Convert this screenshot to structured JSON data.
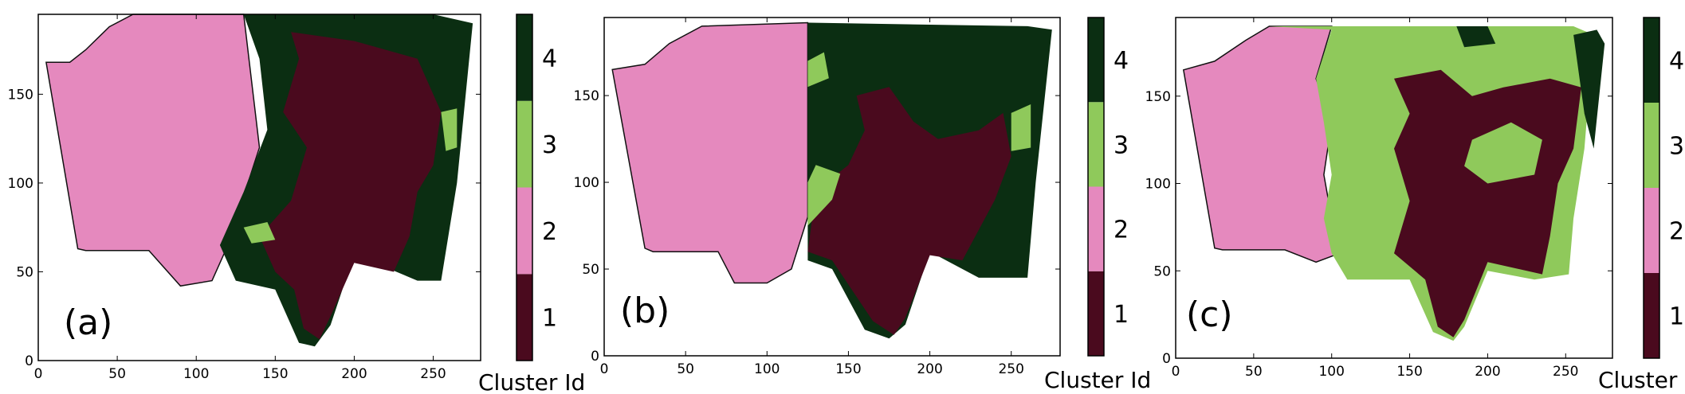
{
  "colors": {
    "cluster_1": "#4a0a1e",
    "cluster_2": "#e589be",
    "cluster_3": "#8fc95b",
    "cluster_4": "#0b2e12"
  },
  "chart_data": [
    {
      "type": "heatmap",
      "panel_label": "(a)",
      "x_ticks": [
        "0",
        "50",
        "100",
        "150",
        "200",
        "250"
      ],
      "y_ticks": [
        "0",
        "50",
        "100",
        "150"
      ],
      "xlim": [
        0,
        280
      ],
      "ylim": [
        0,
        195
      ],
      "colorbar": {
        "ticks": [
          "1",
          "2",
          "3",
          "4"
        ],
        "label": "Cluster Id"
      },
      "regions": [
        {
          "cluster": 2,
          "polygon": [
            [
              5,
              168
            ],
            [
              20,
              168
            ],
            [
              30,
              175
            ],
            [
              45,
              188
            ],
            [
              60,
              195
            ],
            [
              130,
              195
            ],
            [
              140,
              120
            ],
            [
              120,
              65
            ],
            [
              110,
              45
            ],
            [
              90,
              42
            ],
            [
              70,
              62
            ],
            [
              30,
              62
            ],
            [
              25,
              63
            ]
          ]
        },
        {
          "cluster": 4,
          "polygon": [
            [
              130,
              195
            ],
            [
              250,
              195
            ],
            [
              275,
              190
            ],
            [
              265,
              100
            ],
            [
              255,
              45
            ],
            [
              240,
              45
            ],
            [
              200,
              60
            ],
            [
              185,
              20
            ],
            [
              175,
              8
            ],
            [
              165,
              10
            ],
            [
              150,
              40
            ],
            [
              125,
              45
            ],
            [
              115,
              65
            ],
            [
              130,
              95
            ],
            [
              145,
              130
            ],
            [
              140,
              170
            ]
          ]
        },
        {
          "cluster": 1,
          "polygon": [
            [
              160,
              185
            ],
            [
              200,
              180
            ],
            [
              240,
              170
            ],
            [
              255,
              140
            ],
            [
              250,
              110
            ],
            [
              240,
              95
            ],
            [
              235,
              70
            ],
            [
              225,
              50
            ],
            [
              200,
              55
            ],
            [
              185,
              25
            ],
            [
              178,
              12
            ],
            [
              168,
              18
            ],
            [
              162,
              40
            ],
            [
              150,
              50
            ],
            [
              140,
              70
            ],
            [
              160,
              90
            ],
            [
              170,
              120
            ],
            [
              155,
              140
            ],
            [
              165,
              170
            ]
          ]
        },
        {
          "cluster": 3,
          "polygon": [
            [
              255,
              140
            ],
            [
              265,
              142
            ],
            [
              265,
              120
            ],
            [
              258,
              118
            ]
          ]
        },
        {
          "cluster": 3,
          "polygon": [
            [
              130,
              75
            ],
            [
              145,
              78
            ],
            [
              150,
              68
            ],
            [
              135,
              66
            ]
          ]
        }
      ]
    },
    {
      "type": "heatmap",
      "panel_label": "(b)",
      "x_ticks": [
        "0",
        "50",
        "100",
        "150",
        "200",
        "250"
      ],
      "y_ticks": [
        "0",
        "50",
        "100",
        "150"
      ],
      "xlim": [
        0,
        280
      ],
      "ylim": [
        0,
        195
      ],
      "colorbar": {
        "ticks": [
          "1",
          "2",
          "3",
          "4"
        ],
        "label": "Cluster Id"
      },
      "regions": [
        {
          "cluster": 2,
          "polygon": [
            [
              5,
              165
            ],
            [
              25,
              168
            ],
            [
              40,
              180
            ],
            [
              60,
              190
            ],
            [
              125,
              192
            ],
            [
              125,
              130
            ],
            [
              125,
              80
            ],
            [
              115,
              50
            ],
            [
              100,
              42
            ],
            [
              80,
              42
            ],
            [
              70,
              60
            ],
            [
              30,
              60
            ],
            [
              25,
              62
            ]
          ]
        },
        {
          "cluster": 4,
          "polygon": [
            [
              125,
              192
            ],
            [
              260,
              190
            ],
            [
              275,
              188
            ],
            [
              265,
              100
            ],
            [
              260,
              45
            ],
            [
              230,
              45
            ],
            [
              200,
              60
            ],
            [
              185,
              18
            ],
            [
              175,
              10
            ],
            [
              160,
              15
            ],
            [
              140,
              50
            ],
            [
              125,
              55
            ],
            [
              125,
              130
            ]
          ]
        },
        {
          "cluster": 1,
          "polygon": [
            [
              155,
              150
            ],
            [
              175,
              155
            ],
            [
              190,
              135
            ],
            [
              205,
              125
            ],
            [
              230,
              130
            ],
            [
              245,
              140
            ],
            [
              250,
              115
            ],
            [
              240,
              90
            ],
            [
              220,
              55
            ],
            [
              200,
              58
            ],
            [
              185,
              22
            ],
            [
              178,
              12
            ],
            [
              165,
              20
            ],
            [
              140,
              55
            ],
            [
              125,
              60
            ],
            [
              130,
              95
            ],
            [
              150,
              110
            ],
            [
              160,
              130
            ]
          ]
        },
        {
          "cluster": 3,
          "polygon": [
            [
              125,
              75
            ],
            [
              140,
              90
            ],
            [
              145,
              105
            ],
            [
              130,
              110
            ],
            [
              125,
              100
            ]
          ]
        },
        {
          "cluster": 3,
          "polygon": [
            [
              125,
              170
            ],
            [
              135,
              175
            ],
            [
              138,
              160
            ],
            [
              125,
              155
            ]
          ]
        },
        {
          "cluster": 3,
          "polygon": [
            [
              250,
              140
            ],
            [
              262,
              145
            ],
            [
              262,
              120
            ],
            [
              250,
              118
            ]
          ]
        }
      ]
    },
    {
      "type": "heatmap",
      "panel_label": "(c)",
      "x_ticks": [
        "0",
        "50",
        "100",
        "150",
        "200",
        "250"
      ],
      "y_ticks": [
        "0",
        "50",
        "100",
        "150"
      ],
      "xlim": [
        0,
        280
      ],
      "ylim": [
        0,
        195
      ],
      "colorbar": {
        "ticks": [
          "1",
          "2",
          "3",
          "4"
        ],
        "label": "Cluster"
      },
      "regions": [
        {
          "cluster": 2,
          "polygon": [
            [
              5,
              165
            ],
            [
              25,
              170
            ],
            [
              45,
              182
            ],
            [
              60,
              190
            ],
            [
              100,
              190
            ],
            [
              90,
              160
            ],
            [
              100,
              135
            ],
            [
              95,
              105
            ],
            [
              100,
              80
            ],
            [
              105,
              60
            ],
            [
              90,
              55
            ],
            [
              70,
              62
            ],
            [
              30,
              62
            ],
            [
              25,
              63
            ]
          ]
        },
        {
          "cluster": 3,
          "polygon": [
            [
              60,
              190
            ],
            [
              255,
              190
            ],
            [
              268,
              185
            ],
            [
              262,
              120
            ],
            [
              255,
              80
            ],
            [
              252,
              48
            ],
            [
              230,
              45
            ],
            [
              200,
              50
            ],
            [
              185,
              18
            ],
            [
              178,
              10
            ],
            [
              165,
              15
            ],
            [
              150,
              45
            ],
            [
              130,
              45
            ],
            [
              110,
              45
            ],
            [
              100,
              60
            ],
            [
              95,
              80
            ],
            [
              100,
              105
            ],
            [
              95,
              135
            ],
            [
              90,
              160
            ],
            [
              100,
              188
            ]
          ]
        },
        {
          "cluster": 1,
          "polygon": [
            [
              140,
              160
            ],
            [
              170,
              165
            ],
            [
              190,
              150
            ],
            [
              210,
              155
            ],
            [
              240,
              160
            ],
            [
              260,
              155
            ],
            [
              255,
              120
            ],
            [
              245,
              100
            ],
            [
              240,
              70
            ],
            [
              235,
              48
            ],
            [
              200,
              55
            ],
            [
              185,
              22
            ],
            [
              178,
              12
            ],
            [
              168,
              18
            ],
            [
              160,
              45
            ],
            [
              140,
              60
            ],
            [
              150,
              90
            ],
            [
              140,
              120
            ],
            [
              150,
              140
            ]
          ]
        },
        {
          "cluster": 3,
          "polygon": [
            [
              190,
              125
            ],
            [
              215,
              135
            ],
            [
              235,
              125
            ],
            [
              230,
              105
            ],
            [
              200,
              100
            ],
            [
              185,
              110
            ]
          ]
        },
        {
          "cluster": 4,
          "polygon": [
            [
              255,
              185
            ],
            [
              270,
              188
            ],
            [
              275,
              180
            ],
            [
              268,
              120
            ],
            [
              262,
              140
            ]
          ]
        },
        {
          "cluster": 4,
          "polygon": [
            [
              180,
              190
            ],
            [
              200,
              190
            ],
            [
              205,
              180
            ],
            [
              185,
              178
            ]
          ]
        }
      ]
    }
  ]
}
